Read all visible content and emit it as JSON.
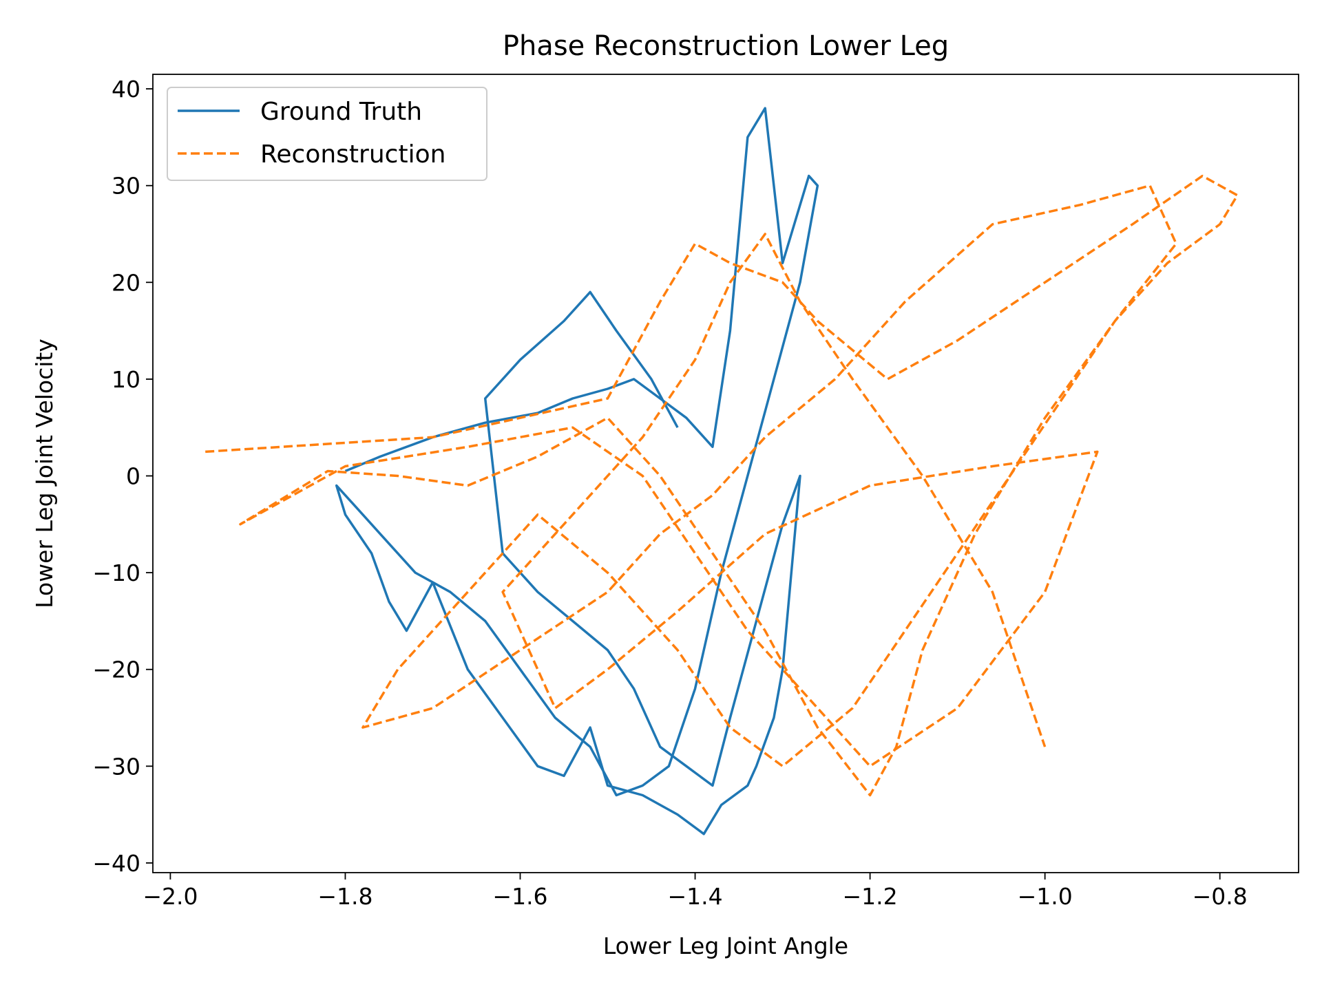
{
  "chart_data": {
    "type": "line",
    "title": "Phase Reconstruction Lower Leg",
    "xlabel": "Lower Leg Joint Angle",
    "ylabel": "Lower Leg Joint Velocity",
    "xlim": [
      -2.02,
      -0.71
    ],
    "ylim": [
      -41,
      41.5
    ],
    "xticks": [
      -2.0,
      -1.8,
      -1.6,
      -1.4,
      -1.2,
      -1.0,
      -0.8
    ],
    "xtick_labels": [
      "−2.0",
      "−1.8",
      "−1.6",
      "−1.4",
      "−1.2",
      "−1.0",
      "−0.8"
    ],
    "yticks": [
      40,
      30,
      20,
      10,
      0,
      -10,
      -20,
      -30,
      -40
    ],
    "ytick_labels": [
      "40",
      "30",
      "20",
      "10",
      "0",
      "−10",
      "−20",
      "−30",
      "−40"
    ],
    "grid": false,
    "legend_position": "top-left",
    "series": [
      {
        "name": "Ground Truth",
        "color": "#1f77b4",
        "style": "solid",
        "x": [
          -1.8,
          -1.76,
          -1.7,
          -1.64,
          -1.58,
          -1.54,
          -1.5,
          -1.47,
          -1.44,
          -1.41,
          -1.38,
          -1.36,
          -1.34,
          -1.32,
          -1.3,
          -1.28,
          -1.27,
          -1.26,
          -1.28,
          -1.31,
          -1.34,
          -1.37,
          -1.4,
          -1.43,
          -1.46,
          -1.49,
          -1.52,
          -1.56,
          -1.6,
          -1.64,
          -1.68,
          -1.72,
          -1.76,
          -1.79,
          -1.81,
          -1.8,
          -1.77,
          -1.75,
          -1.73,
          -1.7,
          -1.66,
          -1.62,
          -1.58,
          -1.55,
          -1.52,
          -1.5,
          -1.46,
          -1.42,
          -1.39,
          -1.37,
          -1.34,
          -1.33,
          -1.31,
          -1.3,
          -1.29,
          -1.28,
          -1.3,
          -1.33,
          -1.36,
          -1.38,
          -1.41,
          -1.44,
          -1.47,
          -1.5,
          -1.54,
          -1.58,
          -1.62,
          -1.64,
          -1.6,
          -1.55,
          -1.52,
          -1.49,
          -1.45,
          -1.42
        ],
        "y": [
          0.5,
          2,
          4,
          5.5,
          6.5,
          8,
          9,
          10,
          8,
          6,
          3,
          15,
          35,
          38,
          22,
          28,
          31,
          30,
          20,
          10,
          0,
          -10,
          -22,
          -30,
          -32,
          -33,
          -28,
          -25,
          -20,
          -15,
          -12,
          -10,
          -6,
          -3,
          -1,
          -4,
          -8,
          -13,
          -16,
          -11,
          -20,
          -25,
          -30,
          -31,
          -26,
          -32,
          -33,
          -35,
          -37,
          -34,
          -32,
          -30,
          -25,
          -20,
          -10,
          0,
          -5,
          -15,
          -25,
          -32,
          -30,
          -28,
          -22,
          -18,
          -15,
          -12,
          -8,
          8,
          12,
          16,
          19,
          15,
          10,
          5
        ]
      },
      {
        "name": "Reconstruction",
        "color": "#ff7f0e",
        "style": "dashed",
        "x": [
          -1.96,
          -1.7,
          -1.5,
          -1.44,
          -1.4,
          -1.36,
          -1.3,
          -1.26,
          -1.18,
          -1.1,
          -1.0,
          -0.9,
          -0.82,
          -0.78,
          -0.8,
          -0.86,
          -0.92,
          -0.98,
          -1.04,
          -1.1,
          -1.16,
          -1.22,
          -1.3,
          -1.36,
          -1.42,
          -1.5,
          -1.58,
          -1.66,
          -1.74,
          -1.78,
          -1.7,
          -1.6,
          -1.5,
          -1.44,
          -1.38,
          -1.32,
          -1.24,
          -1.16,
          -1.06,
          -0.96,
          -0.88,
          -0.85,
          -0.92,
          -1.0,
          -1.08,
          -1.14,
          -1.17,
          -1.2,
          -1.26,
          -1.32,
          -1.38,
          -1.44,
          -1.5,
          -1.58,
          -1.66,
          -1.74,
          -1.82,
          -1.92,
          -1.8,
          -1.66,
          -1.54,
          -1.46,
          -1.4,
          -1.34,
          -1.28,
          -1.2,
          -1.1,
          -1.0,
          -0.94,
          -1.06,
          -1.2,
          -1.32,
          -1.42,
          -1.5,
          -1.56,
          -1.62,
          -1.54,
          -1.46,
          -1.4,
          -1.36,
          -1.32,
          -1.28,
          -1.22,
          -1.14,
          -1.06,
          -1.0
        ],
        "y": [
          2.5,
          4,
          8,
          18,
          24,
          22,
          20,
          16,
          10,
          14,
          20,
          26,
          31,
          29,
          26,
          22,
          16,
          8,
          0,
          -8,
          -16,
          -24,
          -30,
          -26,
          -18,
          -10,
          -4,
          -12,
          -20,
          -26,
          -24,
          -18,
          -12,
          -6,
          -2,
          4,
          10,
          18,
          26,
          28,
          30,
          24,
          16,
          6,
          -6,
          -18,
          -28,
          -33,
          -26,
          -16,
          -8,
          0,
          6,
          2,
          -1,
          0,
          0.5,
          -5,
          1,
          3,
          5,
          0,
          -8,
          -16,
          -22,
          -30,
          -24,
          -12,
          2.5,
          1,
          -1,
          -6,
          -14,
          -20,
          -24,
          -12,
          -4,
          4,
          12,
          20,
          25,
          18,
          10,
          0,
          -12,
          -28
        ]
      }
    ]
  }
}
